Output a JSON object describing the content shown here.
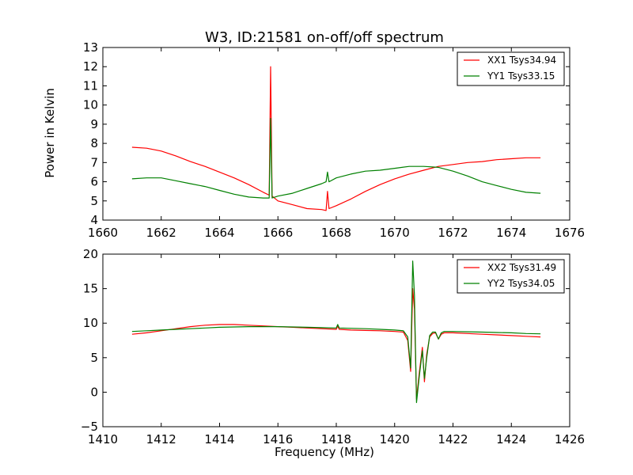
{
  "chart_data": [
    {
      "type": "line",
      "title": "W3, ID:21581 on-off/off spectrum",
      "xlabel": "",
      "ylabel": "Power in Kelvin",
      "xlim": [
        1660,
        1676
      ],
      "ylim": [
        4,
        13
      ],
      "xticks": [
        1660,
        1662,
        1664,
        1666,
        1668,
        1670,
        1672,
        1674,
        1676
      ],
      "yticks": [
        4,
        5,
        6,
        7,
        8,
        9,
        10,
        11,
        12,
        13
      ],
      "grid": false,
      "legend_position": "top-right",
      "series": [
        {
          "name": "XX1 Tsys34.94",
          "color": "#ff0000",
          "x": [
            1661.0,
            1661.5,
            1662.0,
            1662.5,
            1663.0,
            1663.5,
            1664.0,
            1664.5,
            1665.0,
            1665.5,
            1665.7,
            1665.75,
            1665.8,
            1666.0,
            1666.5,
            1667.0,
            1667.5,
            1667.65,
            1667.7,
            1667.75,
            1668.0,
            1668.5,
            1669.0,
            1669.5,
            1670.0,
            1670.5,
            1671.0,
            1671.5,
            1672.0,
            1672.5,
            1673.0,
            1673.5,
            1674.0,
            1674.5,
            1675.0
          ],
          "y": [
            7.8,
            7.75,
            7.6,
            7.35,
            7.05,
            6.8,
            6.5,
            6.2,
            5.85,
            5.45,
            5.3,
            12.0,
            5.25,
            5.0,
            4.8,
            4.6,
            4.55,
            4.5,
            5.5,
            4.6,
            4.75,
            5.1,
            5.5,
            5.85,
            6.15,
            6.4,
            6.6,
            6.8,
            6.9,
            7.0,
            7.05,
            7.15,
            7.2,
            7.25,
            7.25
          ]
        },
        {
          "name": "YY1 Tsys33.15",
          "color": "#008000",
          "x": [
            1661.0,
            1661.5,
            1662.0,
            1662.5,
            1663.0,
            1663.5,
            1664.0,
            1664.5,
            1665.0,
            1665.5,
            1665.7,
            1665.75,
            1665.8,
            1666.0,
            1666.5,
            1667.0,
            1667.5,
            1667.65,
            1667.7,
            1667.75,
            1668.0,
            1668.5,
            1669.0,
            1669.5,
            1670.0,
            1670.5,
            1671.0,
            1671.5,
            1672.0,
            1672.5,
            1673.0,
            1673.5,
            1674.0,
            1674.5,
            1675.0
          ],
          "y": [
            6.15,
            6.2,
            6.2,
            6.05,
            5.9,
            5.75,
            5.55,
            5.35,
            5.2,
            5.15,
            5.15,
            9.3,
            5.15,
            5.25,
            5.4,
            5.65,
            5.9,
            6.0,
            6.5,
            6.0,
            6.2,
            6.4,
            6.55,
            6.6,
            6.7,
            6.8,
            6.8,
            6.75,
            6.55,
            6.3,
            6.0,
            5.8,
            5.6,
            5.45,
            5.4
          ]
        }
      ]
    },
    {
      "type": "line",
      "title": "",
      "xlabel": "Frequency (MHz)",
      "ylabel": "",
      "xlim": [
        1410,
        1426
      ],
      "ylim": [
        -5,
        20
      ],
      "xticks": [
        1410,
        1412,
        1414,
        1416,
        1418,
        1420,
        1422,
        1424,
        1426
      ],
      "yticks": [
        -5,
        0,
        5,
        10,
        15,
        20
      ],
      "grid": false,
      "legend_position": "top-right",
      "series": [
        {
          "name": "XX2 Tsys31.49",
          "color": "#ff0000",
          "x": [
            1411.0,
            1411.5,
            1412.0,
            1412.5,
            1413.0,
            1413.5,
            1414.0,
            1414.5,
            1415.0,
            1415.5,
            1416.0,
            1416.5,
            1417.0,
            1417.5,
            1418.0,
            1418.05,
            1418.1,
            1418.5,
            1419.0,
            1419.5,
            1420.0,
            1420.3,
            1420.45,
            1420.55,
            1420.62,
            1420.68,
            1420.75,
            1420.85,
            1420.95,
            1421.02,
            1421.1,
            1421.2,
            1421.3,
            1421.4,
            1421.5,
            1421.6,
            1421.7,
            1422.0,
            1422.5,
            1423.0,
            1423.5,
            1424.0,
            1424.5,
            1425.0
          ],
          "y": [
            8.4,
            8.6,
            8.9,
            9.2,
            9.5,
            9.7,
            9.8,
            9.8,
            9.7,
            9.6,
            9.5,
            9.4,
            9.3,
            9.2,
            9.1,
            9.6,
            9.1,
            9.0,
            8.95,
            8.9,
            8.8,
            8.7,
            7.5,
            3.0,
            15.0,
            12.0,
            -1.0,
            3.0,
            6.5,
            1.5,
            5.5,
            8.0,
            8.5,
            8.6,
            7.7,
            8.4,
            8.6,
            8.6,
            8.5,
            8.4,
            8.3,
            8.2,
            8.1,
            8.0
          ]
        },
        {
          "name": "YY2 Tsys34.05",
          "color": "#008000",
          "x": [
            1411.0,
            1411.5,
            1412.0,
            1412.5,
            1413.0,
            1413.5,
            1414.0,
            1414.5,
            1415.0,
            1415.5,
            1416.0,
            1416.5,
            1417.0,
            1417.5,
            1418.0,
            1418.05,
            1418.1,
            1418.5,
            1419.0,
            1419.5,
            1420.0,
            1420.3,
            1420.45,
            1420.55,
            1420.62,
            1420.68,
            1420.75,
            1420.85,
            1420.95,
            1421.02,
            1421.1,
            1421.2,
            1421.3,
            1421.4,
            1421.5,
            1421.6,
            1421.7,
            1422.0,
            1422.5,
            1423.0,
            1423.5,
            1424.0,
            1424.5,
            1425.0
          ],
          "y": [
            8.8,
            8.9,
            9.0,
            9.1,
            9.2,
            9.3,
            9.4,
            9.45,
            9.5,
            9.5,
            9.5,
            9.45,
            9.4,
            9.35,
            9.3,
            9.8,
            9.3,
            9.25,
            9.2,
            9.1,
            9.0,
            8.9,
            8.0,
            3.5,
            19.0,
            14.0,
            -1.5,
            2.5,
            6.0,
            2.0,
            5.0,
            8.2,
            8.7,
            8.7,
            7.7,
            8.6,
            8.8,
            8.8,
            8.75,
            8.7,
            8.65,
            8.6,
            8.5,
            8.45
          ]
        }
      ]
    }
  ]
}
